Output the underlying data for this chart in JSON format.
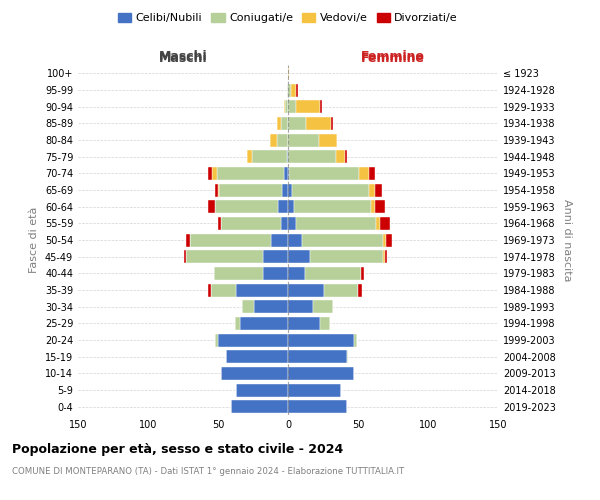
{
  "age_groups": [
    "0-4",
    "5-9",
    "10-14",
    "15-19",
    "20-24",
    "25-29",
    "30-34",
    "35-39",
    "40-44",
    "45-49",
    "50-54",
    "55-59",
    "60-64",
    "65-69",
    "70-74",
    "75-79",
    "80-84",
    "85-89",
    "90-94",
    "95-99",
    "100+"
  ],
  "birth_years": [
    "2019-2023",
    "2014-2018",
    "2009-2013",
    "2004-2008",
    "1999-2003",
    "1994-1998",
    "1989-1993",
    "1984-1988",
    "1979-1983",
    "1974-1978",
    "1969-1973",
    "1964-1968",
    "1959-1963",
    "1954-1958",
    "1949-1953",
    "1944-1948",
    "1939-1943",
    "1934-1938",
    "1929-1933",
    "1924-1928",
    "≤ 1923"
  ],
  "maschi": {
    "celibi": [
      41,
      37,
      48,
      44,
      50,
      34,
      24,
      37,
      18,
      18,
      12,
      5,
      7,
      4,
      3,
      1,
      0,
      0,
      0,
      0,
      0
    ],
    "coniugati": [
      0,
      0,
      0,
      0,
      2,
      4,
      9,
      18,
      35,
      55,
      58,
      43,
      45,
      45,
      48,
      25,
      8,
      5,
      2,
      1,
      0
    ],
    "vedovi": [
      0,
      0,
      0,
      0,
      0,
      0,
      0,
      0,
      0,
      0,
      0,
      0,
      0,
      1,
      3,
      3,
      5,
      3,
      1,
      0,
      0
    ],
    "divorziati": [
      0,
      0,
      0,
      0,
      0,
      0,
      0,
      2,
      0,
      1,
      3,
      2,
      5,
      2,
      3,
      0,
      0,
      0,
      0,
      0,
      0
    ]
  },
  "femmine": {
    "nubili": [
      42,
      38,
      47,
      42,
      47,
      23,
      18,
      26,
      12,
      16,
      10,
      6,
      4,
      3,
      1,
      0,
      0,
      0,
      0,
      0,
      0
    ],
    "coniugate": [
      0,
      0,
      0,
      1,
      2,
      7,
      14,
      24,
      40,
      52,
      58,
      57,
      55,
      55,
      50,
      34,
      22,
      13,
      6,
      2,
      0
    ],
    "vedove": [
      0,
      0,
      0,
      0,
      0,
      0,
      0,
      0,
      0,
      1,
      2,
      3,
      3,
      4,
      7,
      7,
      13,
      18,
      17,
      4,
      1
    ],
    "divorziate": [
      0,
      0,
      0,
      0,
      0,
      0,
      0,
      3,
      2,
      2,
      4,
      7,
      7,
      5,
      4,
      1,
      0,
      1,
      1,
      1,
      0
    ]
  },
  "colors": {
    "celibi": "#4472c4",
    "coniugati": "#b7d09a",
    "vedovi": "#f5c242",
    "divorziati": "#cc0000"
  },
  "xlim": 150,
  "title": "Popolazione per età, sesso e stato civile - 2024",
  "subtitle": "COMUNE DI MONTEPARANO (TA) - Dati ISTAT 1° gennaio 2024 - Elaborazione TUTTITALIA.IT",
  "xlabel_maschi": "Maschi",
  "xlabel_femmine": "Femmine",
  "ylabel_left": "Fasce di età",
  "ylabel_right": "Anni di nascita"
}
